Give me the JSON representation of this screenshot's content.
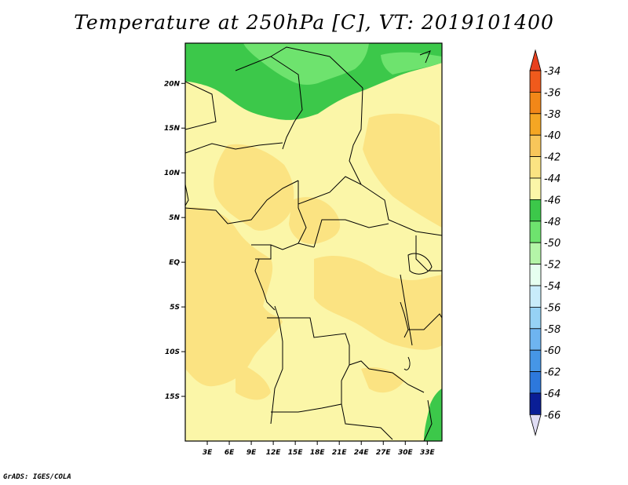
{
  "title": "Temperature at 250hPa [C], VT: 2019101400",
  "footer": "GrADS: IGES/COLA",
  "map": {
    "lon_range": [
      0,
      35
    ],
    "lat_range": [
      -20,
      24.5
    ],
    "lat_ticks": [
      {
        "lat": 20,
        "label": "20N"
      },
      {
        "lat": 15,
        "label": "15N"
      },
      {
        "lat": 10,
        "label": "10N"
      },
      {
        "lat": 5,
        "label": "5N"
      },
      {
        "lat": 0,
        "label": "EQ"
      },
      {
        "lat": -5,
        "label": "5S"
      },
      {
        "lat": -10,
        "label": "10S"
      },
      {
        "lat": -15,
        "label": "15S"
      }
    ],
    "lon_ticks": [
      {
        "lon": 3,
        "label": "3E"
      },
      {
        "lon": 6,
        "label": "6E"
      },
      {
        "lon": 9,
        "label": "9E"
      },
      {
        "lon": 12,
        "label": "12E"
      },
      {
        "lon": 15,
        "label": "15E"
      },
      {
        "lon": 18,
        "label": "18E"
      },
      {
        "lon": 21,
        "label": "21E"
      },
      {
        "lon": 24,
        "label": "24E"
      },
      {
        "lon": 27,
        "label": "27E"
      },
      {
        "lon": 30,
        "label": "30E"
      },
      {
        "lon": 33,
        "label": "33E"
      }
    ],
    "background_color": "#fbf6a8"
  },
  "colorbar": {
    "levels": [
      {
        "label": "-34",
        "color": "#f05a1c"
      },
      {
        "label": "-36",
        "color": "#f28718"
      },
      {
        "label": "-38",
        "color": "#f5a623"
      },
      {
        "label": "-40",
        "color": "#f8c65a"
      },
      {
        "label": "-42",
        "color": "#fbe382"
      },
      {
        "label": "-44",
        "color": "#fbf6a8"
      },
      {
        "label": "-46",
        "color": "#3cc84a"
      },
      {
        "label": "-48",
        "color": "#6ee36e"
      },
      {
        "label": "-50",
        "color": "#b4f5a8"
      },
      {
        "label": "-52",
        "color": "#e6fff0"
      },
      {
        "label": "-54",
        "color": "#c8ecfa"
      },
      {
        "label": "-56",
        "color": "#96d2f5"
      },
      {
        "label": "-58",
        "color": "#6eb4f0"
      },
      {
        "label": "-60",
        "color": "#4696e6"
      },
      {
        "label": "-62",
        "color": "#2d78dc"
      },
      {
        "label": "-64",
        "color": "#1e50c8"
      },
      {
        "label": "-66",
        "color": "#0a1e96"
      }
    ],
    "top_arrow_color": "#e8401e",
    "bottom_arrow_color": "#e0ddf5"
  }
}
